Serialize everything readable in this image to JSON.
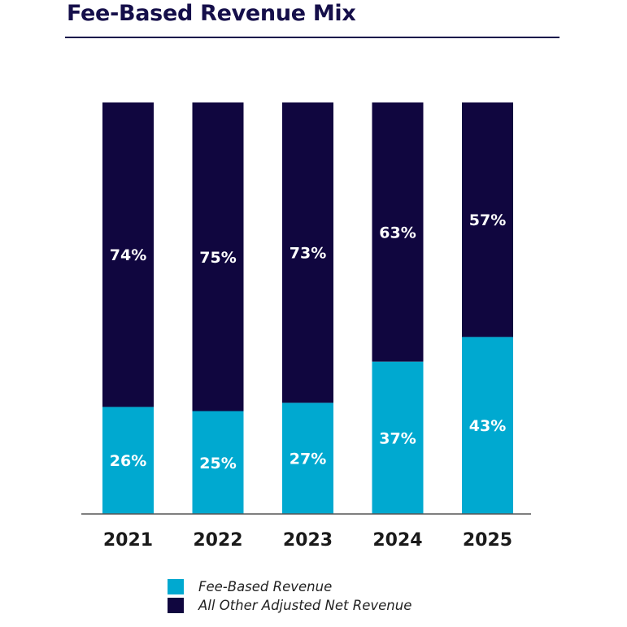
{
  "title": "Fee-Based Revenue Mix",
  "colors": {
    "fee_based": "#00a9d0",
    "other": "#10063f",
    "title": "#150f4a",
    "axis": "#555555"
  },
  "legend": [
    {
      "label": "Fee-Based Revenue",
      "color": "#00a9d0"
    },
    {
      "label": "All Other Adjusted Net Revenue",
      "color": "#10063f"
    }
  ],
  "chart_data": {
    "type": "bar",
    "stacked": true,
    "title": "Fee-Based Revenue Mix",
    "categories": [
      "2021",
      "2022",
      "2023",
      "2024",
      "2025"
    ],
    "series": [
      {
        "name": "Fee-Based Revenue",
        "values": [
          26,
          25,
          27,
          37,
          43
        ],
        "labels": [
          "26%",
          "25%",
          "27%",
          "37%",
          "43%"
        ],
        "color": "#00a9d0"
      },
      {
        "name": "All Other Adjusted Net Revenue",
        "values": [
          74,
          75,
          73,
          63,
          57
        ],
        "labels": [
          "74%",
          "75%",
          "73%",
          "63%",
          "57%"
        ],
        "color": "#10063f"
      }
    ],
    "ylim": [
      0,
      100
    ],
    "xlabel": "",
    "ylabel": "",
    "grid": false,
    "legend_position": "bottom"
  }
}
